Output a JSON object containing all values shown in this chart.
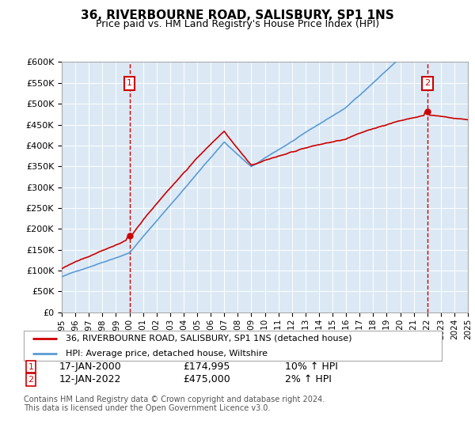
{
  "title": "36, RIVERBOURNE ROAD, SALISBURY, SP1 1NS",
  "subtitle": "Price paid vs. HM Land Registry's House Price Index (HPI)",
  "legend_line1": "36, RIVERBOURNE ROAD, SALISBURY, SP1 1NS (detached house)",
  "legend_line2": "HPI: Average price, detached house, Wiltshire",
  "annotation1_label": "1",
  "annotation1_date": "17-JAN-2000",
  "annotation1_price": "£174,995",
  "annotation1_hpi": "10% ↑ HPI",
  "annotation2_label": "2",
  "annotation2_date": "12-JAN-2022",
  "annotation2_price": "£475,000",
  "annotation2_hpi": "2% ↑ HPI",
  "footnote": "Contains HM Land Registry data © Crown copyright and database right 2024.\nThis data is licensed under the Open Government Licence v3.0.",
  "bg_color": "#dce9f5",
  "red_color": "#cc0000",
  "blue_color": "#5b9bd5",
  "annotation_box_color": "#cc0000",
  "ylim_min": 0,
  "ylim_max": 600000,
  "xstart_year": 1995,
  "xend_year": 2025
}
